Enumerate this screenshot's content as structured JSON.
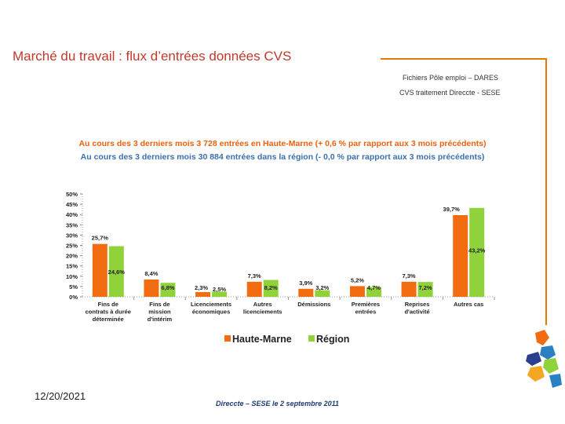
{
  "header": {
    "title": "Marché du travail : flux d’entrées données CVS",
    "source_line1": "Fichiers Pôle emploi – DARES",
    "source_line2": "CVS traitement Direccte - SESE"
  },
  "summary": {
    "line1": "Au cours des 3 derniers mois 3 728 entrées en Haute-Marne (+ 0,6 % par rapport aux 3 mois précédents)",
    "line2": "Au cours des 3 derniers mois 30 884 entrées dans la région (- 0,0 % par rapport aux 3 mois précédents)"
  },
  "colors": {
    "haute_marne": "#f26d11",
    "region": "#8fd23a"
  },
  "chart_data": {
    "type": "bar",
    "categories": [
      [
        "Fins de",
        "contrats à durée",
        "déterminée"
      ],
      [
        "Fins de",
        "mission",
        "d'intérim"
      ],
      [
        "Licenciements",
        "économiques"
      ],
      [
        "Autres",
        "licenciements"
      ],
      [
        "Démissions"
      ],
      [
        "Premières",
        "entrées"
      ],
      [
        "Reprises",
        "d'activité"
      ],
      [
        "Autres cas"
      ]
    ],
    "series": [
      {
        "name": "Haute-Marne",
        "values": [
          25.7,
          8.4,
          2.3,
          7.3,
          3.9,
          5.2,
          7.3,
          39.7
        ],
        "labels": [
          "25,7%",
          "8,4%",
          "2,3%",
          "7,3%",
          "3,9%",
          "5,2%",
          "7,3%",
          "39,7%"
        ]
      },
      {
        "name": "Région",
        "values": [
          24.6,
          6.8,
          2.5,
          8.2,
          3.2,
          4.7,
          7.2,
          43.2
        ],
        "labels": [
          "24,6%",
          "6,8%",
          "2,5%",
          "8,2%",
          "3,2%",
          "4,7%",
          "7,2%",
          "43,2%"
        ]
      }
    ],
    "y_ticks": [
      "0%",
      "5%",
      "10%",
      "15%",
      "20%",
      "25%",
      "30%",
      "35%",
      "40%",
      "45%",
      "50%"
    ],
    "ylim": [
      0,
      50
    ],
    "legend": [
      "Haute-Marne",
      "Région"
    ],
    "legend_position": "bottom"
  },
  "footer": {
    "date": "12/20/2021",
    "credit": "Direccte – SESE le 2 septembre 2011"
  }
}
